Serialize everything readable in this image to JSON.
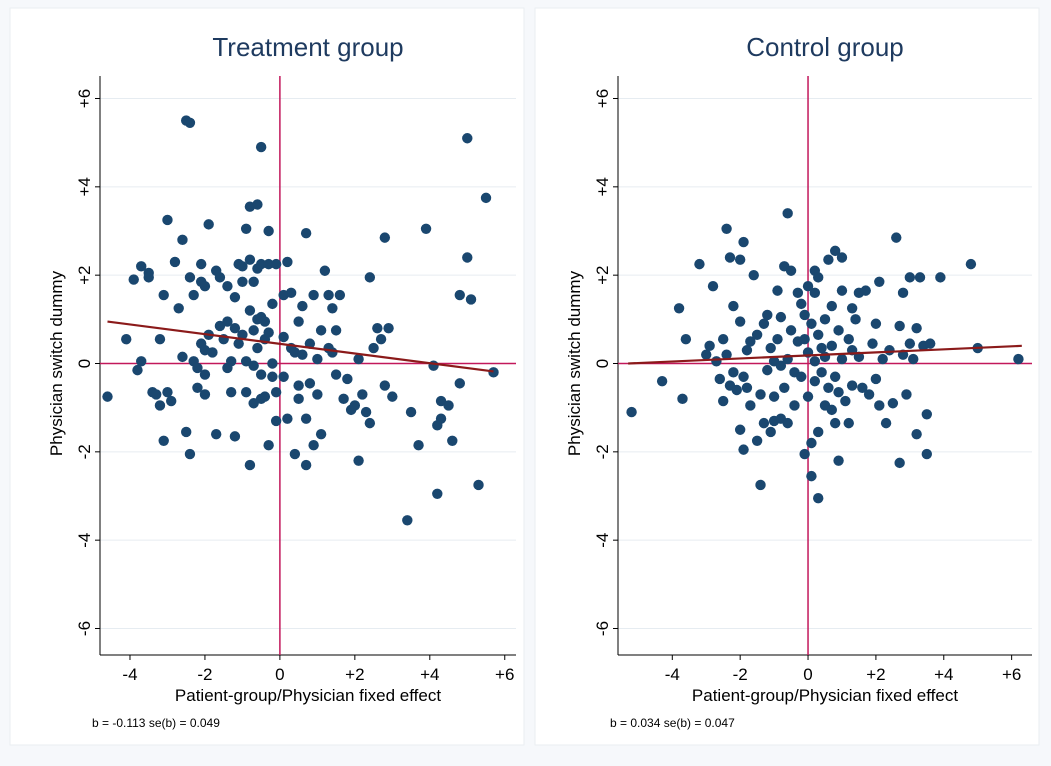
{
  "chart_data": [
    {
      "type": "scatter",
      "title": "Treatment group",
      "xlabel": "Patient-group/Physician fixed effect",
      "ylabel": "Physician switch dummy",
      "xlim": [
        -4.8,
        6.3
      ],
      "ylim": [
        -6.6,
        6.6
      ],
      "xticks": [
        -4,
        -2,
        0,
        2,
        4,
        6
      ],
      "xtick_labels": [
        "-4",
        "-2",
        "0",
        "+2",
        "+4",
        "+6"
      ],
      "yticks": [
        -6,
        -4,
        -2,
        0,
        2,
        4,
        6
      ],
      "ytick_labels": [
        "-6",
        "-4",
        "-2",
        "0",
        "+2",
        "+4",
        "+6"
      ],
      "grid": true,
      "note": "b = -0.113 se(b) = 0.049",
      "fit_line": {
        "x": [
          -4.6,
          5.7
        ],
        "y": [
          0.95,
          -0.18
        ]
      },
      "reference_lines": {
        "x": 0,
        "y": 0
      },
      "points": [
        [
          -4.6,
          -0.75
        ],
        [
          -4.1,
          0.55
        ],
        [
          -3.9,
          1.9
        ],
        [
          -3.8,
          -0.15
        ],
        [
          -3.7,
          0.05
        ],
        [
          -3.7,
          2.2
        ],
        [
          -3.5,
          2.05
        ],
        [
          -3.5,
          1.95
        ],
        [
          -3.4,
          -0.65
        ],
        [
          -3.3,
          -0.7
        ],
        [
          -3.2,
          0.55
        ],
        [
          -3.2,
          -0.95
        ],
        [
          -3.1,
          -1.75
        ],
        [
          -3.1,
          1.55
        ],
        [
          -3.0,
          3.25
        ],
        [
          -3.0,
          -0.65
        ],
        [
          -2.9,
          -0.85
        ],
        [
          -2.8,
          2.3
        ],
        [
          -2.7,
          1.25
        ],
        [
          -2.6,
          0.15
        ],
        [
          -2.6,
          2.8
        ],
        [
          -2.5,
          -1.55
        ],
        [
          -2.5,
          5.5
        ],
        [
          -2.4,
          5.45
        ],
        [
          -2.4,
          1.95
        ],
        [
          -2.4,
          -2.05
        ],
        [
          -2.3,
          1.55
        ],
        [
          -2.3,
          0.05
        ],
        [
          -2.2,
          -0.55
        ],
        [
          -2.2,
          -0.1
        ],
        [
          -2.1,
          2.25
        ],
        [
          -2.1,
          0.45
        ],
        [
          -2.1,
          1.85
        ],
        [
          -2.0,
          -0.25
        ],
        [
          -2.0,
          -0.7
        ],
        [
          -2.0,
          0.3
        ],
        [
          -2.0,
          1.75
        ],
        [
          -1.9,
          0.65
        ],
        [
          -1.9,
          3.15
        ],
        [
          -1.8,
          0.25
        ],
        [
          -1.7,
          2.1
        ],
        [
          -1.7,
          -1.6
        ],
        [
          -1.6,
          1.95
        ],
        [
          -1.6,
          0.85
        ],
        [
          -1.5,
          0.55
        ],
        [
          -1.4,
          1.75
        ],
        [
          -1.4,
          -0.1
        ],
        [
          -1.4,
          0.95
        ],
        [
          -1.3,
          0.05
        ],
        [
          -1.3,
          -0.65
        ],
        [
          -1.2,
          -1.65
        ],
        [
          -1.2,
          0.8
        ],
        [
          -1.2,
          1.5
        ],
        [
          -1.1,
          2.25
        ],
        [
          -1.1,
          0.45
        ],
        [
          -1.0,
          1.85
        ],
        [
          -1.0,
          0.65
        ],
        [
          -1.0,
          2.2
        ],
        [
          -0.9,
          3.05
        ],
        [
          -0.9,
          0.05
        ],
        [
          -0.9,
          -0.65
        ],
        [
          -0.8,
          1.2
        ],
        [
          -0.8,
          2.35
        ],
        [
          -0.8,
          3.55
        ],
        [
          -0.8,
          -2.3
        ],
        [
          -0.7,
          -0.9
        ],
        [
          -0.7,
          0.75
        ],
        [
          -0.7,
          1.85
        ],
        [
          -0.7,
          -0.05
        ],
        [
          -0.6,
          2.15
        ],
        [
          -0.6,
          1.0
        ],
        [
          -0.6,
          0.35
        ],
        [
          -0.6,
          3.6
        ],
        [
          -0.5,
          -0.25
        ],
        [
          -0.5,
          1.05
        ],
        [
          -0.5,
          -0.8
        ],
        [
          -0.5,
          2.25
        ],
        [
          -0.5,
          4.9
        ],
        [
          -0.4,
          0.55
        ],
        [
          -0.4,
          0.95
        ],
        [
          -0.4,
          -0.75
        ],
        [
          -0.3,
          -1.85
        ],
        [
          -0.3,
          2.25
        ],
        [
          -0.3,
          3.0
        ],
        [
          -0.3,
          0.7
        ],
        [
          -0.2,
          -0.3
        ],
        [
          -0.2,
          1.35
        ],
        [
          -0.2,
          0.0
        ],
        [
          -0.1,
          -1.3
        ],
        [
          -0.1,
          -0.65
        ],
        [
          -0.1,
          2.25
        ],
        [
          0.1,
          0.6
        ],
        [
          0.1,
          1.55
        ],
        [
          0.1,
          -0.3
        ],
        [
          0.2,
          2.3
        ],
        [
          0.2,
          -1.25
        ],
        [
          0.3,
          0.35
        ],
        [
          0.3,
          1.6
        ],
        [
          0.4,
          -2.05
        ],
        [
          0.4,
          0.25
        ],
        [
          0.5,
          -0.5
        ],
        [
          0.5,
          0.95
        ],
        [
          0.5,
          -0.8
        ],
        [
          0.6,
          1.3
        ],
        [
          0.6,
          0.2
        ],
        [
          0.7,
          -1.25
        ],
        [
          0.7,
          2.95
        ],
        [
          0.7,
          -2.3
        ],
        [
          0.8,
          -0.45
        ],
        [
          0.8,
          0.45
        ],
        [
          0.9,
          1.55
        ],
        [
          0.9,
          -1.85
        ],
        [
          1.0,
          0.1
        ],
        [
          1.0,
          -0.7
        ],
        [
          1.1,
          -1.6
        ],
        [
          1.1,
          0.75
        ],
        [
          1.2,
          2.1
        ],
        [
          1.3,
          0.35
        ],
        [
          1.3,
          1.55
        ],
        [
          1.4,
          0.25
        ],
        [
          1.4,
          1.25
        ],
        [
          1.5,
          0.75
        ],
        [
          1.5,
          -0.25
        ],
        [
          1.6,
          1.55
        ],
        [
          1.7,
          -0.8
        ],
        [
          1.8,
          -0.35
        ],
        [
          1.9,
          -1.05
        ],
        [
          2.0,
          -0.95
        ],
        [
          2.1,
          0.1
        ],
        [
          2.1,
          -2.2
        ],
        [
          2.2,
          -0.7
        ],
        [
          2.3,
          -1.1
        ],
        [
          2.4,
          1.95
        ],
        [
          2.4,
          -1.35
        ],
        [
          2.5,
          0.35
        ],
        [
          2.6,
          0.8
        ],
        [
          2.7,
          0.55
        ],
        [
          2.8,
          2.85
        ],
        [
          2.8,
          -0.5
        ],
        [
          2.9,
          0.8
        ],
        [
          3.0,
          -0.75
        ],
        [
          3.4,
          -3.55
        ],
        [
          3.5,
          -1.1
        ],
        [
          3.7,
          -1.85
        ],
        [
          3.9,
          3.05
        ],
        [
          4.1,
          -0.05
        ],
        [
          4.2,
          -2.95
        ],
        [
          4.2,
          -1.4
        ],
        [
          4.3,
          -0.85
        ],
        [
          4.3,
          -1.25
        ],
        [
          4.5,
          -0.95
        ],
        [
          4.6,
          -1.75
        ],
        [
          4.8,
          -0.45
        ],
        [
          4.8,
          1.55
        ],
        [
          5.0,
          2.4
        ],
        [
          5.0,
          5.1
        ],
        [
          5.1,
          1.45
        ],
        [
          5.3,
          -2.75
        ],
        [
          5.5,
          3.75
        ],
        [
          5.7,
          -0.2
        ]
      ]
    },
    {
      "type": "scatter",
      "title": "Control group",
      "xlabel": "Patient-group/Physician fixed effect",
      "ylabel": "Physician switch dummy",
      "xlim": [
        -5.6,
        6.6
      ],
      "ylim": [
        -6.6,
        6.6
      ],
      "xticks": [
        -4,
        -2,
        0,
        2,
        4,
        6
      ],
      "xtick_labels": [
        "-4",
        "-2",
        "0",
        "+2",
        "+4",
        "+6"
      ],
      "yticks": [
        -6,
        -4,
        -2,
        0,
        2,
        4,
        6
      ],
      "ytick_labels": [
        "-6",
        "-4",
        "-2",
        "0",
        "+2",
        "+4",
        "+6"
      ],
      "grid": true,
      "note": "b = 0.034 se(b) = 0.047",
      "fit_line": {
        "x": [
          -5.3,
          6.3
        ],
        "y": [
          0.0,
          0.4
        ]
      },
      "reference_lines": {
        "x": 0,
        "y": 0
      },
      "points": [
        [
          -5.2,
          -1.1
        ],
        [
          -4.3,
          -0.4
        ],
        [
          -3.8,
          1.25
        ],
        [
          -3.7,
          -0.8
        ],
        [
          -3.6,
          0.55
        ],
        [
          -3.2,
          2.25
        ],
        [
          -3.0,
          0.2
        ],
        [
          -2.9,
          0.4
        ],
        [
          -2.8,
          1.75
        ],
        [
          -2.7,
          0.05
        ],
        [
          -2.6,
          -0.35
        ],
        [
          -2.5,
          -0.85
        ],
        [
          -2.5,
          0.55
        ],
        [
          -2.4,
          3.05
        ],
        [
          -2.4,
          0.2
        ],
        [
          -2.3,
          2.4
        ],
        [
          -2.3,
          -0.5
        ],
        [
          -2.2,
          1.3
        ],
        [
          -2.2,
          -0.2
        ],
        [
          -2.1,
          -0.6
        ],
        [
          -2.0,
          0.95
        ],
        [
          -2.0,
          2.35
        ],
        [
          -2.0,
          -1.5
        ],
        [
          -1.9,
          -1.95
        ],
        [
          -1.9,
          -0.3
        ],
        [
          -1.9,
          2.75
        ],
        [
          -1.8,
          0.3
        ],
        [
          -1.8,
          -0.55
        ],
        [
          -1.7,
          -0.95
        ],
        [
          -1.7,
          0.5
        ],
        [
          -1.6,
          2.0
        ],
        [
          -1.5,
          -1.75
        ],
        [
          -1.5,
          0.65
        ],
        [
          -1.4,
          -0.7
        ],
        [
          -1.4,
          -2.75
        ],
        [
          -1.3,
          -1.35
        ],
        [
          -1.3,
          0.9
        ],
        [
          -1.2,
          -0.15
        ],
        [
          -1.2,
          1.1
        ],
        [
          -1.1,
          -1.55
        ],
        [
          -1.1,
          0.35
        ],
        [
          -1.0,
          -1.3
        ],
        [
          -1.0,
          0.05
        ],
        [
          -1.0,
          -0.75
        ],
        [
          -0.9,
          1.65
        ],
        [
          -0.9,
          0.55
        ],
        [
          -0.8,
          -1.25
        ],
        [
          -0.8,
          -0.05
        ],
        [
          -0.8,
          1.05
        ],
        [
          -0.7,
          2.2
        ],
        [
          -0.7,
          -0.55
        ],
        [
          -0.6,
          3.4
        ],
        [
          -0.6,
          -1.35
        ],
        [
          -0.6,
          0.1
        ],
        [
          -0.5,
          2.1
        ],
        [
          -0.5,
          0.75
        ],
        [
          -0.4,
          -0.95
        ],
        [
          -0.4,
          -0.2
        ],
        [
          -0.3,
          0.5
        ],
        [
          -0.3,
          1.6
        ],
        [
          -0.2,
          1.35
        ],
        [
          -0.2,
          -0.3
        ],
        [
          -0.1,
          -2.05
        ],
        [
          -0.1,
          0.55
        ],
        [
          -0.1,
          1.1
        ],
        [
          0.0,
          -0.75
        ],
        [
          0.0,
          0.25
        ],
        [
          0.0,
          1.75
        ],
        [
          0.1,
          -1.8
        ],
        [
          0.1,
          0.9
        ],
        [
          0.1,
          -2.55
        ],
        [
          0.2,
          0.05
        ],
        [
          0.2,
          1.6
        ],
        [
          0.2,
          2.1
        ],
        [
          0.2,
          -0.4
        ],
        [
          0.3,
          0.65
        ],
        [
          0.3,
          -1.55
        ],
        [
          0.3,
          1.95
        ],
        [
          0.3,
          -3.05
        ],
        [
          0.4,
          0.35
        ],
        [
          0.4,
          -0.2
        ],
        [
          0.5,
          1.0
        ],
        [
          0.5,
          0.15
        ],
        [
          0.5,
          -0.95
        ],
        [
          0.6,
          -0.55
        ],
        [
          0.6,
          2.35
        ],
        [
          0.7,
          0.4
        ],
        [
          0.7,
          -1.05
        ],
        [
          0.7,
          1.3
        ],
        [
          0.8,
          -0.3
        ],
        [
          0.8,
          -1.35
        ],
        [
          0.8,
          2.55
        ],
        [
          0.9,
          0.75
        ],
        [
          0.9,
          -2.2
        ],
        [
          0.9,
          -0.65
        ],
        [
          1.0,
          0.1
        ],
        [
          1.0,
          2.4
        ],
        [
          1.0,
          1.65
        ],
        [
          1.1,
          -0.85
        ],
        [
          1.2,
          0.55
        ],
        [
          1.2,
          -1.35
        ],
        [
          1.3,
          0.3
        ],
        [
          1.3,
          -0.5
        ],
        [
          1.3,
          1.25
        ],
        [
          1.4,
          1.0
        ],
        [
          1.5,
          1.6
        ],
        [
          1.5,
          0.15
        ],
        [
          1.6,
          -0.55
        ],
        [
          1.7,
          1.65
        ],
        [
          1.8,
          -0.7
        ],
        [
          1.9,
          0.45
        ],
        [
          2.0,
          -0.35
        ],
        [
          2.0,
          0.9
        ],
        [
          2.1,
          1.85
        ],
        [
          2.1,
          -0.95
        ],
        [
          2.2,
          0.1
        ],
        [
          2.3,
          -1.35
        ],
        [
          2.4,
          0.3
        ],
        [
          2.5,
          -0.9
        ],
        [
          2.6,
          2.85
        ],
        [
          2.7,
          0.85
        ],
        [
          2.7,
          -2.25
        ],
        [
          2.8,
          1.6
        ],
        [
          2.8,
          0.2
        ],
        [
          2.9,
          -0.7
        ],
        [
          3.0,
          1.95
        ],
        [
          3.0,
          0.45
        ],
        [
          3.1,
          0.1
        ],
        [
          3.2,
          -1.6
        ],
        [
          3.2,
          0.8
        ],
        [
          3.3,
          1.95
        ],
        [
          3.4,
          0.4
        ],
        [
          3.5,
          -1.15
        ],
        [
          3.5,
          -2.05
        ],
        [
          3.6,
          0.45
        ],
        [
          3.9,
          1.95
        ],
        [
          4.8,
          2.25
        ],
        [
          5.0,
          0.35
        ],
        [
          6.2,
          0.1
        ]
      ]
    }
  ]
}
